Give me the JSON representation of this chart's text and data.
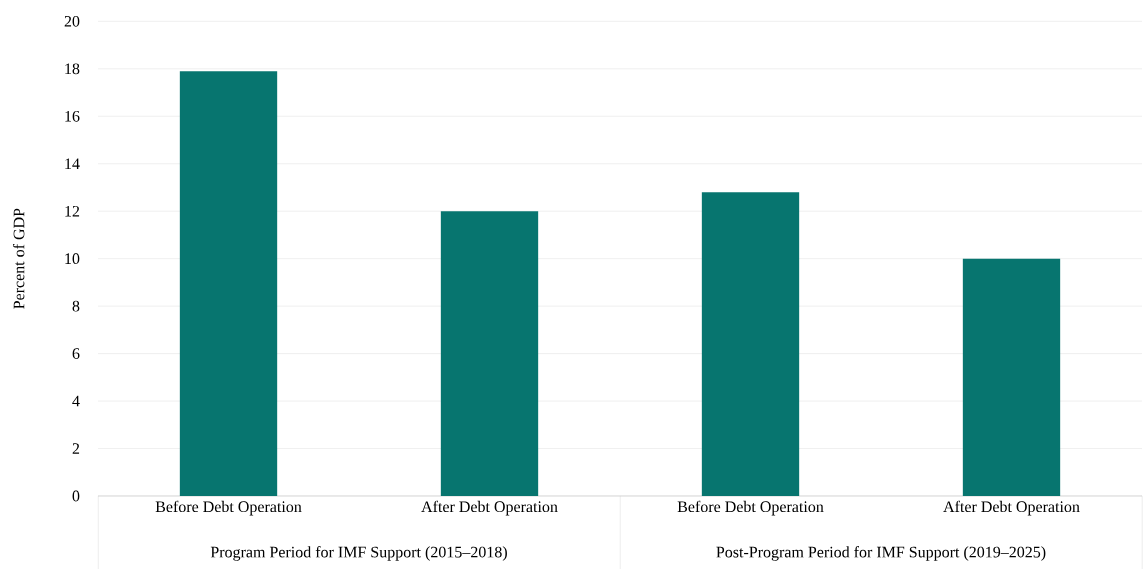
{
  "chart_data": {
    "type": "bar",
    "ylabel": "Percent of GDP",
    "categories": [
      "Before Debt Operation",
      "After Debt Operation",
      "Before Debt Operation",
      "After Debt Operation"
    ],
    "values": [
      17.9,
      12.0,
      12.8,
      10.0
    ],
    "color": "#07756f",
    "ylim": [
      0,
      20
    ],
    "yticks": [
      0,
      2,
      4,
      6,
      8,
      10,
      12,
      14,
      16,
      18,
      20
    ],
    "grid": "y",
    "annotations": [
      "Program Period for IMF Support (2015–2018)",
      "Post-Program Period for IMF Support (2019–2025)"
    ]
  }
}
